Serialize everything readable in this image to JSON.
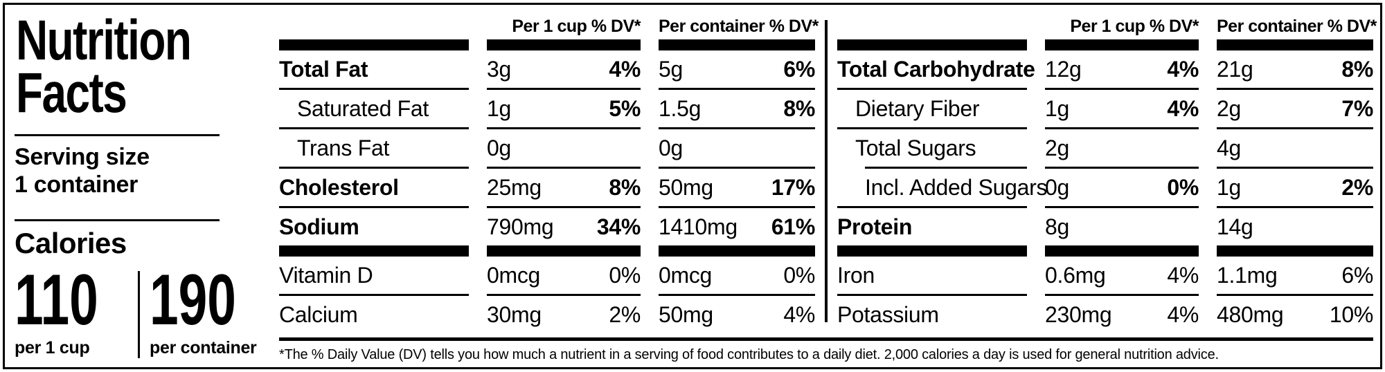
{
  "panel": {
    "title_line1": "Nutrition",
    "title_line2": "Facts",
    "serving_size_label": "Serving size",
    "serving_size_value": "1 container",
    "calories_label": "Calories",
    "calories_per_cup": {
      "value": "110",
      "caption": "per 1 cup"
    },
    "calories_per_container": {
      "value": "190",
      "caption": "per container"
    }
  },
  "table": {
    "col_headers": {
      "per_cup": "Per 1 cup % DV*",
      "per_container": "Per container % DV*"
    },
    "left_section": {
      "rows": [
        {
          "label": "Total Fat",
          "cup_amount": "3g",
          "cup_dv": "4%",
          "container_amount": "5g",
          "container_dv": "6%"
        },
        {
          "label": "Saturated Fat",
          "cup_amount": "1g",
          "cup_dv": "5%",
          "container_amount": "1.5g",
          "container_dv": "8%"
        },
        {
          "label": "Trans Fat",
          "cup_amount": "0g",
          "cup_dv": "",
          "container_amount": "0g",
          "container_dv": ""
        },
        {
          "label": "Cholesterol",
          "cup_amount": "25mg",
          "cup_dv": "8%",
          "container_amount": "50mg",
          "container_dv": "17%"
        },
        {
          "label": "Sodium",
          "cup_amount": "790mg",
          "cup_dv": "34%",
          "container_amount": "1410mg",
          "container_dv": "61%"
        },
        {
          "label": "Vitamin D",
          "cup_amount": "0mcg",
          "cup_dv": "0%",
          "container_amount": "0mcg",
          "container_dv": "0%"
        },
        {
          "label": "Calcium",
          "cup_amount": "30mg",
          "cup_dv": "2%",
          "container_amount": "50mg",
          "container_dv": "4%"
        }
      ]
    },
    "right_section": {
      "rows": [
        {
          "label": "Total Carbohydrate",
          "cup_amount": "12g",
          "cup_dv": "4%",
          "container_amount": "21g",
          "container_dv": "8%"
        },
        {
          "label": "Dietary Fiber",
          "cup_amount": "1g",
          "cup_dv": "4%",
          "container_amount": "2g",
          "container_dv": "7%"
        },
        {
          "label": "Total Sugars",
          "cup_amount": "2g",
          "cup_dv": "",
          "container_amount": "4g",
          "container_dv": ""
        },
        {
          "label": "Incl. Added Sugars",
          "cup_amount": "0g",
          "cup_dv": "0%",
          "container_amount": "1g",
          "container_dv": "2%"
        },
        {
          "label": "Protein",
          "cup_amount": "8g",
          "cup_dv": "",
          "container_amount": "14g",
          "container_dv": ""
        },
        {
          "label": "Iron",
          "cup_amount": "0.6mg",
          "cup_dv": "4%",
          "container_amount": "1.1mg",
          "container_dv": "6%"
        },
        {
          "label": "Potassium",
          "cup_amount": "230mg",
          "cup_dv": "4%",
          "container_amount": "480mg",
          "container_dv": "10%"
        }
      ]
    },
    "footnote": "*The % Daily Value (DV) tells you how much a nutrient in a serving of food contributes to a daily diet. 2,000 calories a day is used for general nutrition advice."
  }
}
